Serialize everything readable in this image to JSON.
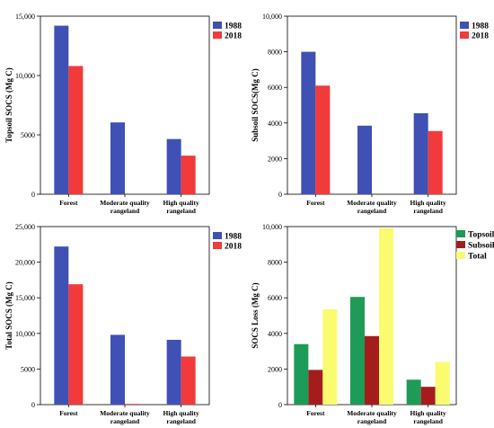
{
  "colors": {
    "y1988": "#3f51b5",
    "y2018": "#f13a3a",
    "topsoil": "#1e9b57",
    "subsoil": "#a51c1c",
    "total": "#fbfb6f"
  },
  "chart_data": [
    {
      "type": "bar",
      "categories": [
        "Forest",
        "Moderate quality rangeland",
        "High quality rangeland"
      ],
      "category_lines": [
        [
          "Forest"
        ],
        [
          "Moderate quality",
          "rangeland"
        ],
        [
          "High quality",
          "rangeland"
        ]
      ],
      "series": [
        {
          "name": "1988",
          "values": [
            14200,
            6050,
            4650
          ]
        },
        {
          "name": "2018",
          "values": [
            10800,
            0,
            3250
          ]
        }
      ],
      "ylabel": "Topsoil SOCS (Mg C)",
      "ylim": [
        0,
        15000
      ],
      "yticks": [
        0,
        5000,
        10000,
        15000
      ],
      "ytick_labels": [
        "0",
        "5000",
        "10,000",
        "15,000"
      ],
      "legend": "top-right",
      "grid": false
    },
    {
      "type": "bar",
      "categories": [
        "Forest",
        "Moderate quality rangeland",
        "High quality rangeland"
      ],
      "category_lines": [
        [
          "Forest"
        ],
        [
          "Moderate quality",
          "rangeland"
        ],
        [
          "High quality",
          "rangeland"
        ]
      ],
      "series": [
        {
          "name": "1988",
          "values": [
            8000,
            3850,
            4550
          ]
        },
        {
          "name": "2018",
          "values": [
            6100,
            0,
            3550
          ]
        }
      ],
      "ylabel": "Subsoil SOCS(Mg C)",
      "ylim": [
        0,
        10000
      ],
      "yticks": [
        0,
        2000,
        4000,
        6000,
        8000,
        10000
      ],
      "ytick_labels": [
        "0",
        "2000",
        "4000",
        "6000",
        "8000",
        "10,000"
      ],
      "legend": "top-right",
      "grid": false
    },
    {
      "type": "bar",
      "categories": [
        "Forest",
        "Moderate quality rangeland",
        "High quality rangeland"
      ],
      "category_lines": [
        [
          "Forest"
        ],
        [
          "Moderate quality",
          "rangeland"
        ],
        [
          "High quality",
          "rangeland"
        ]
      ],
      "series": [
        {
          "name": "1988",
          "values": [
            22200,
            9800,
            9100
          ]
        },
        {
          "name": "2018",
          "values": [
            16900,
            100,
            6750
          ]
        }
      ],
      "ylabel": "Total SOCS (Mg C)",
      "ylim": [
        0,
        25000
      ],
      "yticks": [
        0,
        5000,
        10000,
        15000,
        20000,
        25000
      ],
      "ytick_labels": [
        "0",
        "5000",
        "10,000",
        "15,000",
        "20,000",
        "25,000"
      ],
      "legend": "top-right",
      "grid": false
    },
    {
      "type": "bar",
      "categories": [
        "Forest",
        "Moderate quality rangeland",
        "High quality rangeland"
      ],
      "category_lines": [
        [
          "Forest"
        ],
        [
          "Moderate quality",
          "rangeland"
        ],
        [
          "High quality",
          "rangeland"
        ]
      ],
      "series": [
        {
          "name": "Topsoil",
          "values": [
            3400,
            6050,
            1400
          ]
        },
        {
          "name": "Subsoil",
          "values": [
            1950,
            3850,
            1000
          ]
        },
        {
          "name": "Total",
          "values": [
            5350,
            9900,
            2400
          ]
        }
      ],
      "ylabel": "SOCS Loss (Mg C)",
      "ylim": [
        0,
        10000
      ],
      "yticks": [
        0,
        2000,
        4000,
        6000,
        8000,
        10000
      ],
      "ytick_labels": [
        "0",
        "2000",
        "4000",
        "6000",
        "8000",
        "10,000"
      ],
      "legend": "top-right",
      "grid": false
    }
  ]
}
